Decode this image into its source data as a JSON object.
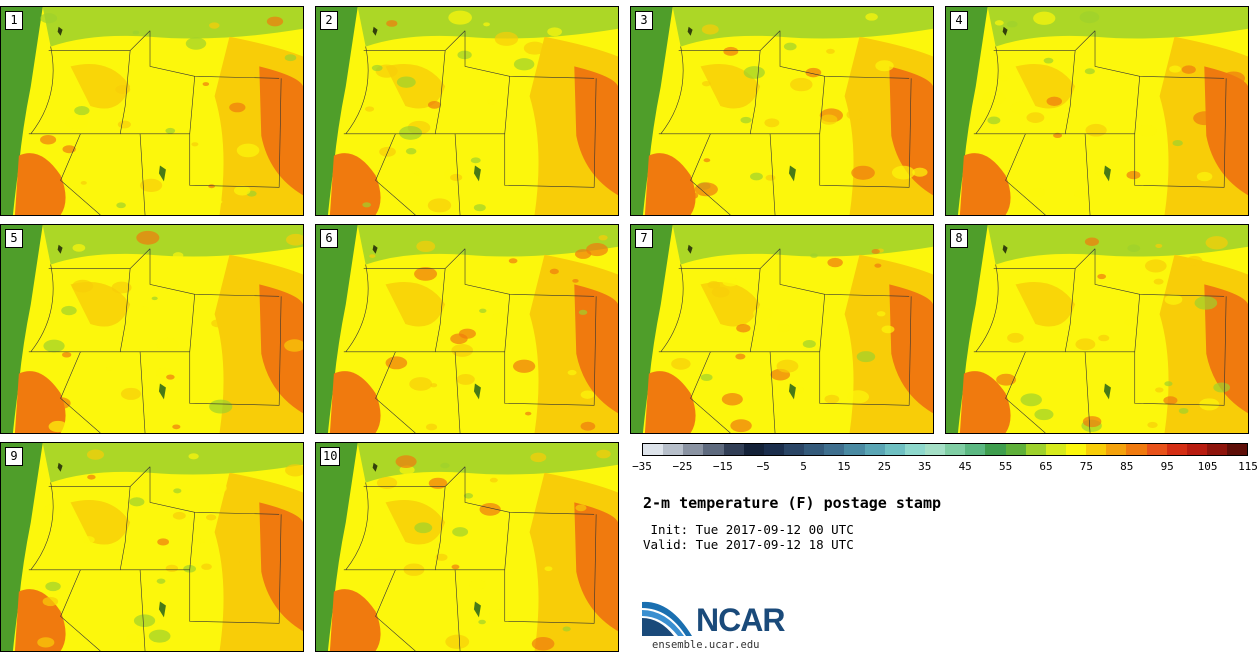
{
  "panels": [
    {
      "label": "1"
    },
    {
      "label": "2"
    },
    {
      "label": "3"
    },
    {
      "label": "4"
    },
    {
      "label": "5"
    },
    {
      "label": "6"
    },
    {
      "label": "7"
    },
    {
      "label": "8"
    },
    {
      "label": "9"
    },
    {
      "label": "10"
    }
  ],
  "colorbar": {
    "ticks": [
      "−35",
      "−25",
      "−15",
      "−5",
      "5",
      "15",
      "25",
      "35",
      "45",
      "55",
      "65",
      "75",
      "85",
      "95",
      "105",
      "115"
    ],
    "colors": [
      "#dde3ea",
      "#b7bfca",
      "#8a93a2",
      "#5e6a7e",
      "#323f56",
      "#142238",
      "#1b2e4c",
      "#2a4565",
      "#345a7a",
      "#3f6f8e",
      "#4a8aa2",
      "#5aa5b4",
      "#6fc0c2",
      "#8ed8cc",
      "#a4dfc6",
      "#80cea4",
      "#5cb882",
      "#3f9e4e",
      "#5fb03a",
      "#9ed12c",
      "#d6ea1c",
      "#fcf70c",
      "#f8cd08",
      "#f4a20c",
      "#f07a0e",
      "#e8521a",
      "#d42e14",
      "#b81c10",
      "#8e140c",
      "#5e0e08"
    ]
  },
  "title": "2-m temperature (F) postage stamp",
  "init_line": " Init: Tue 2017-09-12 00 UTC",
  "valid_line": "Valid: Tue 2017-09-12 18 UTC",
  "logo_text": "NCAR",
  "site": "ensemble.ucar.edu",
  "colors": {
    "ocean": "#4f9e2a",
    "hot": "#f07a0e",
    "warm": "#f8cd08",
    "mild": "#fcf70c",
    "cool": "#9ed12c"
  }
}
